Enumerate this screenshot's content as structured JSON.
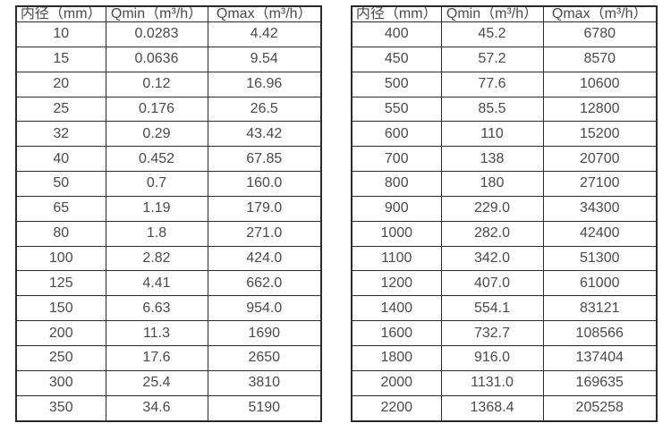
{
  "page": {
    "background": "#ffffff",
    "border_color": "#2b2b2b",
    "text_color": "#4a4a4a"
  },
  "chart_data": [
    {
      "type": "table",
      "title": "",
      "columns": [
        "内径（mm）",
        "Qmin（m³/h）",
        "Qmax（m³/h）"
      ],
      "rows": [
        [
          "10",
          "0.0283",
          "4.42"
        ],
        [
          "15",
          "0.0636",
          "9.54"
        ],
        [
          "20",
          "0.12",
          "16.96"
        ],
        [
          "25",
          "0.176",
          "26.5"
        ],
        [
          "32",
          "0.29",
          "43.42"
        ],
        [
          "40",
          "0.452",
          "67.85"
        ],
        [
          "50",
          "0.7",
          "160.0"
        ],
        [
          "65",
          "1.19",
          "179.0"
        ],
        [
          "80",
          "1.8",
          "271.0"
        ],
        [
          "100",
          "2.82",
          "424.0"
        ],
        [
          "125",
          "4.41",
          "662.0"
        ],
        [
          "150",
          "6.63",
          "954.0"
        ],
        [
          "200",
          "11.3",
          "1690"
        ],
        [
          "250",
          "17.6",
          "2650"
        ],
        [
          "300",
          "25.4",
          "3810"
        ],
        [
          "350",
          "34.6",
          "5190"
        ]
      ]
    },
    {
      "type": "table",
      "title": "",
      "columns": [
        "内径（mm）",
        "Qmin（m³/h）",
        "Qmax（m³/h）"
      ],
      "rows": [
        [
          "400",
          "45.2",
          "6780"
        ],
        [
          "450",
          "57.2",
          "8570"
        ],
        [
          "500",
          "77.6",
          "10600"
        ],
        [
          "550",
          "85.5",
          "12800"
        ],
        [
          "600",
          "110",
          "15200"
        ],
        [
          "700",
          "138",
          "20700"
        ],
        [
          "800",
          "180",
          "27100"
        ],
        [
          "900",
          "229.0",
          "34300"
        ],
        [
          "1000",
          "282.0",
          "42400"
        ],
        [
          "1100",
          "342.0",
          "51300"
        ],
        [
          "1200",
          "407.0",
          "61000"
        ],
        [
          "1400",
          "554.1",
          "83121"
        ],
        [
          "1600",
          "732.7",
          "108566"
        ],
        [
          "1800",
          "916.0",
          "137404"
        ],
        [
          "2000",
          "1131.0",
          "169635"
        ],
        [
          "2200",
          "1368.4",
          "205258"
        ]
      ]
    }
  ]
}
